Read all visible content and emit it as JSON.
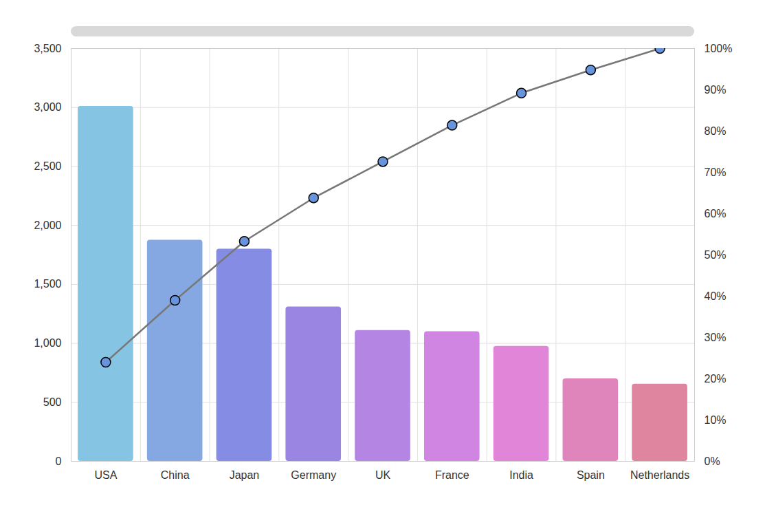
{
  "chart_data": {
    "type": "bar",
    "categories": [
      "USA",
      "China",
      "Japan",
      "Germany",
      "UK",
      "France",
      "India",
      "Spain",
      "Netherlands"
    ],
    "series": [
      {
        "type": "bar",
        "values": [
          3010,
          1875,
          1800,
          1310,
          1110,
          1100,
          975,
          700,
          655
        ],
        "colors": [
          "#86c4e3",
          "#85a8e3",
          "#858ce3",
          "#9a85e3",
          "#b585e3",
          "#d085e3",
          "#e085d7",
          "#e085bb",
          "#e0859f"
        ]
      },
      {
        "type": "line",
        "axis": "y2",
        "color": "#777777",
        "marker": "circle",
        "values": [
          24.0,
          39.0,
          53.3,
          63.8,
          72.6,
          81.4,
          89.2,
          94.8,
          100
        ]
      }
    ],
    "ylim": [
      0,
      3500
    ],
    "yticks": [
      0,
      500,
      {
        "value": 1000,
        "label": "1,000"
      },
      {
        "value": 1500,
        "label": "1,500"
      },
      {
        "value": 2000,
        "label": "2,000"
      },
      {
        "value": 2500,
        "label": "2,500"
      },
      {
        "value": 3000,
        "label": "3,000"
      },
      {
        "value": 3500,
        "label": "3,500"
      }
    ],
    "y2lim": [
      0,
      100
    ],
    "y2ticks": [
      {
        "value": 0,
        "label": "0%"
      },
      {
        "value": 10,
        "label": "10%"
      },
      {
        "value": 20,
        "label": "20%"
      },
      {
        "value": 30,
        "label": "30%"
      },
      {
        "value": 40,
        "label": "40%"
      },
      {
        "value": 50,
        "label": "50%"
      },
      {
        "value": 60,
        "label": "60%"
      },
      {
        "value": 70,
        "label": "70%"
      },
      {
        "value": 80,
        "label": "80%"
      },
      {
        "value": 90,
        "label": "90%"
      },
      {
        "value": 100,
        "label": "100%"
      }
    ],
    "grid": true
  }
}
